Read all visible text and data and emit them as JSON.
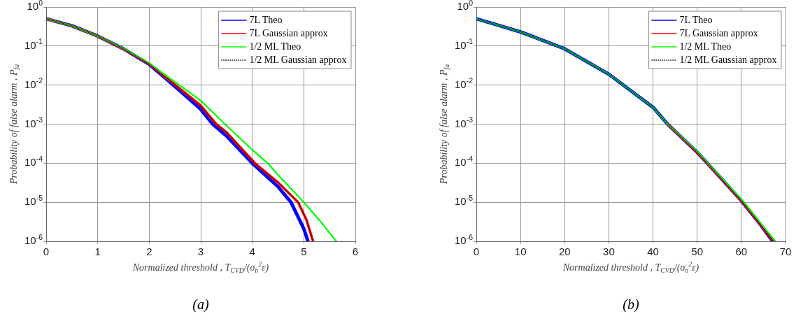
{
  "chart_data": [
    {
      "type": "line",
      "xlabel": "Normalized threshold , T$_{CVD}$/(σ$_{n}$$^{2}$ε)",
      "ylabel": "Probability of false alarm , P$_{fa}$",
      "annotations": [
        "(a)"
      ],
      "log": "y",
      "grid": true,
      "legend": "top right",
      "marker": "none",
      "xlim": [
        0,
        6
      ],
      "xticks": [
        0,
        1,
        2,
        3,
        4,
        5,
        6
      ],
      "ylim": [
        1e-06,
        1
      ],
      "yticks": [
        {
          "value": 1e-06,
          "label": "10$^{-6}$"
        },
        {
          "value": 1e-05,
          "label": "10$^{-5}$"
        },
        {
          "value": 0.0001,
          "label": "10$^{-4}$"
        },
        {
          "value": 0.001,
          "label": "10$^{-3}$"
        },
        {
          "value": 0.01,
          "label": "10$^{-2}$"
        },
        {
          "value": 0.1,
          "label": "10$^{-1}$"
        },
        {
          "value": 1,
          "label": "10$^{0}$"
        }
      ],
      "series": [
        {
          "name": "7L Theo",
          "color": "#0000ff",
          "line_style": "solid",
          "x": [
            0,
            0.5,
            1,
            1.5,
            2,
            2.5,
            3,
            3.23,
            3.5,
            4,
            4.5,
            4.75,
            5,
            5.08
          ],
          "values": [
            0.5,
            0.33,
            0.18,
            0.085,
            0.034,
            0.0092,
            0.0024,
            0.001,
            0.0005,
            0.0001,
            2.5e-05,
            1e-05,
            2.1e-06,
            1e-06
          ]
        },
        {
          "name": "7L Gaussian approx",
          "color": "#ff0000",
          "line_style": "solid",
          "x": [
            0,
            0.5,
            1,
            1.5,
            2,
            2.5,
            3,
            3.3,
            3.5,
            4.05,
            4.5,
            4.89,
            5.05,
            5.18
          ],
          "values": [
            0.5,
            0.33,
            0.18,
            0.085,
            0.035,
            0.0102,
            0.003,
            0.001,
            0.00062,
            0.0001,
            3.2e-05,
            1e-05,
            3.6e-06,
            1e-06
          ]
        },
        {
          "name": "1/2 ML Theo",
          "color": "#00ff00",
          "line_style": "solid",
          "x": [
            0,
            0.5,
            1,
            1.5,
            2,
            2.5,
            3,
            3.47,
            4,
            4.3,
            4.5,
            5,
            5.3,
            5.63
          ],
          "values": [
            0.5,
            0.33,
            0.18,
            0.087,
            0.036,
            0.012,
            0.004,
            0.001,
            0.00022,
            0.0001,
            5e-05,
            1e-05,
            3.5e-06,
            1e-06
          ]
        },
        {
          "name": "1/2 ML Gaussian approx",
          "color": "#000000",
          "line_style": "dotted",
          "x": [
            0,
            0.5,
            1,
            1.5,
            2,
            2.5,
            3,
            3.3,
            3.5,
            4.05,
            4.5,
            4.89,
            5.05,
            5.18
          ],
          "values": [
            0.5,
            0.33,
            0.18,
            0.085,
            0.035,
            0.0102,
            0.003,
            0.001,
            0.00062,
            0.0001,
            3.2e-05,
            1e-05,
            3.6e-06,
            1e-06
          ]
        }
      ]
    },
    {
      "type": "line",
      "xlabel": "Normalized threshold , T$_{CVD}$/(σ$_{n}$$^{2}$ε)",
      "ylabel": "Probability of false alarm , P$_{fa}$",
      "annotations": [
        "(b)"
      ],
      "log": "y",
      "grid": true,
      "legend": "top right",
      "marker": "none",
      "xlim": [
        0,
        70
      ],
      "xticks": [
        0,
        10,
        20,
        30,
        40,
        50,
        60,
        70
      ],
      "ylim": [
        1e-06,
        1
      ],
      "yticks": [
        {
          "value": 1e-06,
          "label": "10$^{-6}$"
        },
        {
          "value": 1e-05,
          "label": "10$^{-5}$"
        },
        {
          "value": 0.0001,
          "label": "10$^{-4}$"
        },
        {
          "value": 0.001,
          "label": "10$^{-3}$"
        },
        {
          "value": 0.01,
          "label": "10$^{-2}$"
        },
        {
          "value": 0.1,
          "label": "10$^{-1}$"
        },
        {
          "value": 1,
          "label": "10$^{0}$"
        }
      ],
      "series": [
        {
          "name": "7L Theo",
          "color": "#0000ff",
          "line_style": "solid",
          "x": [
            0,
            10,
            20,
            30,
            40,
            43.3,
            50,
            52.3,
            60,
            64,
            67.1
          ],
          "values": [
            0.5,
            0.23,
            0.085,
            0.019,
            0.0027,
            0.001,
            0.00019,
            0.0001,
            1.1e-05,
            3e-06,
            1e-06
          ]
        },
        {
          "name": "7L Gaussian approx",
          "color": "#ff0000",
          "line_style": "solid",
          "x": [
            43.3,
            50,
            52.3,
            60,
            64,
            67.3
          ],
          "values": [
            0.001,
            0.00019,
            0.0001,
            1.1e-05,
            3e-06,
            1e-06
          ]
        },
        {
          "name": "1/2 ML Theo",
          "color": "#00ff00",
          "line_style": "solid",
          "x": [
            0,
            10,
            20,
            30,
            40,
            43.3,
            50,
            52.4,
            60,
            64.3,
            67.7
          ],
          "values": [
            0.5,
            0.23,
            0.085,
            0.019,
            0.0027,
            0.001,
            0.0002,
            0.0001,
            1.2e-05,
            3e-06,
            1e-06
          ]
        },
        {
          "name": "1/2 ML Gaussian approx",
          "color": "#000000",
          "line_style": "dotted",
          "x": [
            0,
            10,
            20,
            30,
            40,
            43.3,
            50,
            52.3,
            60,
            64,
            67.3
          ],
          "values": [
            0.5,
            0.23,
            0.085,
            0.019,
            0.0027,
            0.001,
            0.00019,
            0.0001,
            1.1e-05,
            3e-06,
            1e-06
          ]
        }
      ]
    }
  ]
}
